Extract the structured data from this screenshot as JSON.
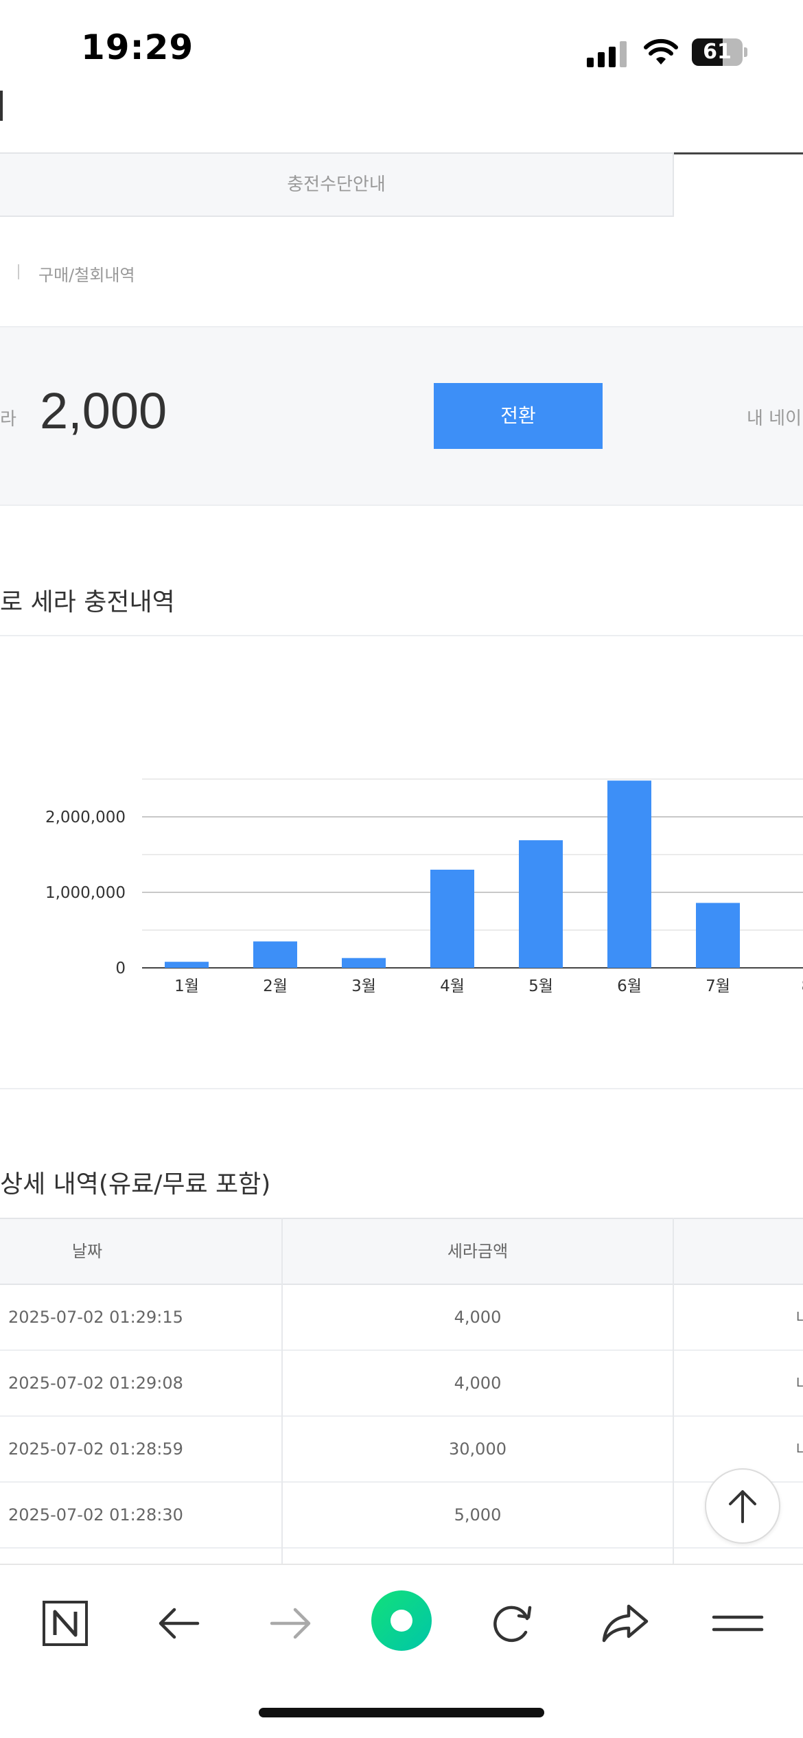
{
  "status_bar": {
    "time": "19:29",
    "battery": "61",
    "battery_level": 0.61
  },
  "tabs": {
    "inactive_label": "충전수단안내"
  },
  "subnav": {
    "link": "구매/철회내역"
  },
  "balance": {
    "unit": "라",
    "amount": "2,000",
    "convert_button": "전환",
    "my_label": "내 네이"
  },
  "chart_section": {
    "title": "로 세라 충전내역"
  },
  "chart_data": {
    "type": "bar",
    "categories": [
      "1월",
      "2월",
      "3월",
      "4월",
      "5월",
      "6월",
      "7월",
      "8"
    ],
    "values": [
      80000,
      350000,
      130000,
      1300000,
      1690000,
      2480000,
      860000,
      0
    ],
    "yticks": [
      "0",
      "1,000,000",
      "2,000,000"
    ],
    "ylim": [
      0,
      2500000
    ],
    "grid": true,
    "bar_color": "#3d8ff7"
  },
  "detail_section": {
    "title": "상세 내역(유료/무료 포함)"
  },
  "table": {
    "headers": [
      "날짜",
      "세라금액"
    ],
    "rows": [
      {
        "date": "2025-07-02 01:29:15",
        "amount": "4,000",
        "extra": "L"
      },
      {
        "date": "2025-07-02 01:29:08",
        "amount": "4,000",
        "extra": "L"
      },
      {
        "date": "2025-07-02 01:28:59",
        "amount": "30,000",
        "extra": "L"
      },
      {
        "date": "2025-07-02 01:28:30",
        "amount": "5,000",
        "extra": ""
      }
    ]
  },
  "toolbar": {
    "icons": [
      "naver-home-icon",
      "back-arrow-icon",
      "forward-arrow-icon",
      "green-dot-icon",
      "reload-icon",
      "share-icon",
      "menu-icon"
    ]
  }
}
